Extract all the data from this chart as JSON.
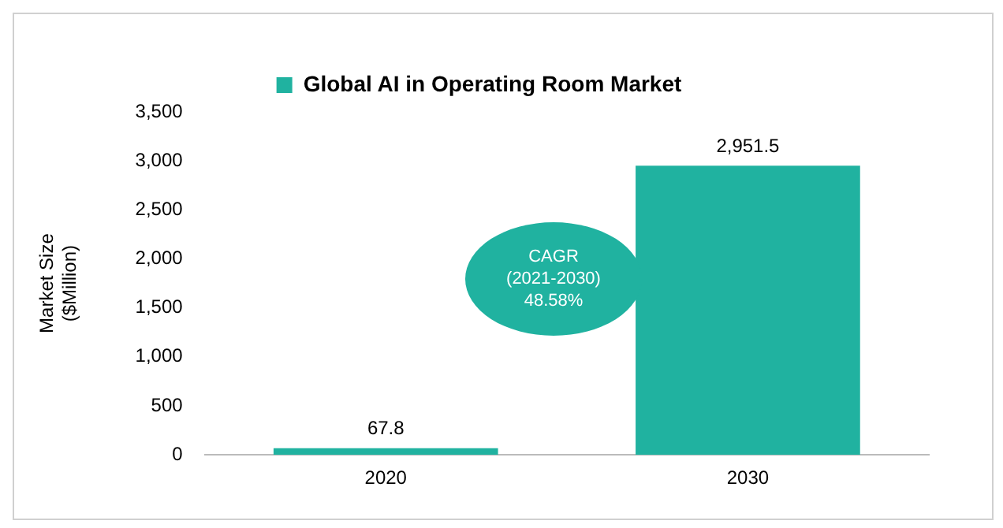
{
  "chart_data": {
    "type": "bar",
    "title": null,
    "ylabel": "Market Size ($Million)",
    "categories": [
      "2020",
      "2030"
    ],
    "series": [
      {
        "name": "Global AI in Operating Room Market",
        "color": "#20b2a0",
        "values": [
          67.8,
          2951.5
        ],
        "value_labels": [
          "67.8",
          "2,951.5"
        ]
      }
    ],
    "ylim": [
      0,
      3500
    ],
    "yticks": [
      0,
      {
        "value": 500,
        "label": "500"
      },
      {
        "value": 1000,
        "label": "1,000"
      },
      {
        "value": 1500,
        "label": "1,500"
      },
      {
        "value": 2000,
        "label": "2,000"
      },
      {
        "value": 2500,
        "label": "2,500"
      },
      {
        "value": 3000,
        "label": "3,000"
      },
      {
        "value": 3500,
        "label": "3,500"
      }
    ],
    "grid": false,
    "legend": "top",
    "annotations": [
      "CAGR\n(2021-2030)\n48.58%"
    ]
  }
}
